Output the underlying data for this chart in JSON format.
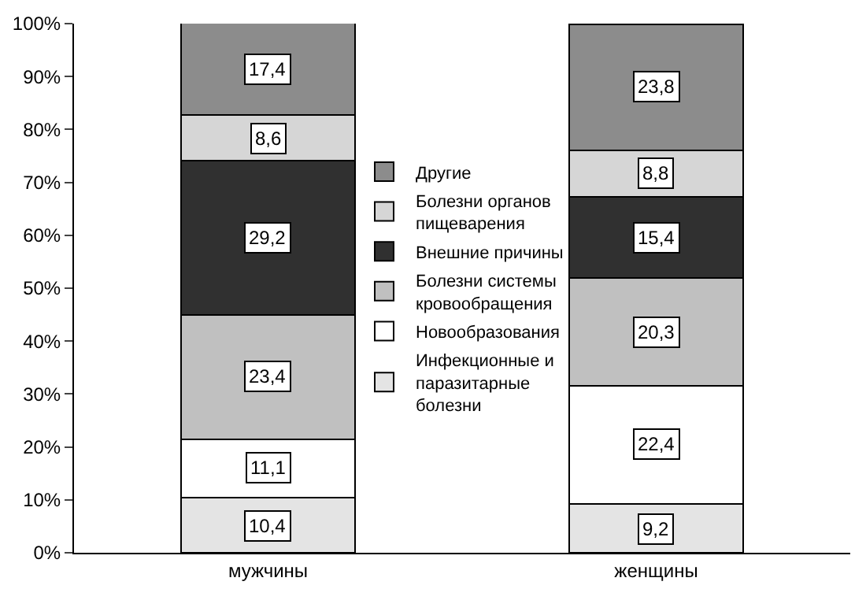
{
  "chart_data": {
    "type": "bar",
    "stacked": true,
    "categories": [
      "мужчины",
      "женщины"
    ],
    "series": [
      {
        "name": "Инфекционные и паразитарные болезни",
        "color": "#e4e4e4",
        "values": [
          10.4,
          9.2
        ],
        "value_labels": [
          "10,4",
          "9,2"
        ]
      },
      {
        "name": "Новообразования",
        "color": "#ffffff",
        "values": [
          11.1,
          22.4
        ],
        "value_labels": [
          "11,1",
          "22,4"
        ]
      },
      {
        "name": "Болезни системы кровообращения",
        "color": "#c0c0c0",
        "values": [
          23.4,
          20.3
        ],
        "value_labels": [
          "23,4",
          "20,3"
        ]
      },
      {
        "name": "Внешние причины",
        "color": "#303030",
        "values": [
          29.2,
          15.4
        ],
        "value_labels": [
          "29,2",
          "15,4"
        ]
      },
      {
        "name": "Болезни органов пищеварения",
        "color": "#d6d6d6",
        "values": [
          8.6,
          8.8
        ],
        "value_labels": [
          "8,6",
          "8,8"
        ]
      },
      {
        "name": "Другие",
        "color": "#8c8c8c",
        "values": [
          17.4,
          23.8
        ],
        "value_labels": [
          "17,4",
          "23,8"
        ]
      }
    ],
    "ylim": [
      0,
      100
    ],
    "yticks": [
      {
        "value": 0,
        "label": "0%"
      },
      {
        "value": 10,
        "label": "10%"
      },
      {
        "value": 20,
        "label": "20%"
      },
      {
        "value": 30,
        "label": "30%"
      },
      {
        "value": 40,
        "label": "40%"
      },
      {
        "value": 50,
        "label": "50%"
      },
      {
        "value": 60,
        "label": "60%"
      },
      {
        "value": 70,
        "label": "70%"
      },
      {
        "value": 80,
        "label": "80%"
      },
      {
        "value": 90,
        "label": "90%"
      },
      {
        "value": 100,
        "label": "100%"
      }
    ],
    "legend": "center"
  }
}
